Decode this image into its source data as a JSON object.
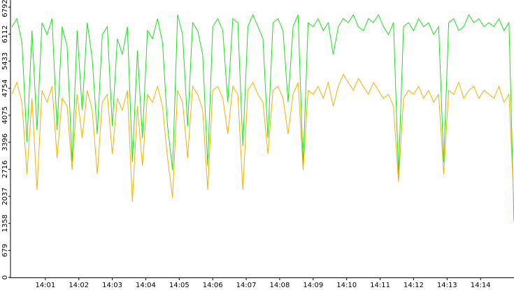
{
  "chart_data": {
    "type": "line",
    "x": [
      0,
      0.15,
      0.3,
      0.45,
      0.6,
      0.75,
      0.9,
      1.05,
      1.2,
      1.35,
      1.5,
      1.65,
      1.8,
      1.95,
      2.1,
      2.25,
      2.4,
      2.55,
      2.7,
      2.85,
      3,
      3.15,
      3.3,
      3.45,
      3.6,
      3.75,
      3.9,
      4.05,
      4.2,
      4.35,
      4.5,
      4.65,
      4.8,
      4.95,
      5.1,
      5.25,
      5.4,
      5.55,
      5.7,
      5.85,
      6,
      6.15,
      6.3,
      6.45,
      6.6,
      6.75,
      6.9,
      7.05,
      7.2,
      7.35,
      7.5,
      7.65,
      7.8,
      7.95,
      8.1,
      8.25,
      8.4,
      8.55,
      8.7,
      8.85,
      9,
      9.15,
      9.3,
      9.45,
      9.6,
      9.75,
      9.9,
      10.05,
      10.2,
      10.35,
      10.5,
      10.65,
      10.8,
      10.95,
      11.1,
      11.25,
      11.4,
      11.55,
      11.7,
      11.85,
      12,
      12.15,
      12.3,
      12.45,
      12.6,
      12.75,
      12.9,
      13.05,
      13.2,
      13.35,
      13.5,
      13.65,
      13.8,
      13.95,
      14.1,
      14.25,
      14.4,
      14.55,
      14.7,
      14.85,
      15
    ],
    "series": [
      {
        "color": "#1ee01e",
        "values": [
          6300,
          6500,
          5900,
          3400,
          6200,
          3700,
          6400,
          6100,
          6500,
          3700,
          6300,
          5800,
          2900,
          6200,
          4200,
          6400,
          5500,
          3600,
          6100,
          6300,
          3800,
          6000,
          5600,
          6300,
          2900,
          5700,
          3500,
          6200,
          6000,
          6500,
          5900,
          3800,
          2700,
          6600,
          6100,
          3800,
          6400,
          6200,
          5600,
          2800,
          6300,
          6500,
          6200,
          4400,
          6500,
          6400,
          3300,
          6300,
          6600,
          6300,
          6000,
          3500,
          6400,
          6500,
          6200,
          4400,
          6300,
          6600,
          2800,
          6400,
          6300,
          6500,
          6200,
          6400,
          5600,
          6300,
          6500,
          6400,
          6600,
          6300,
          6200,
          6500,
          6400,
          6600,
          6300,
          6100,
          6400,
          2600,
          6300,
          6400,
          6200,
          6500,
          6300,
          6400,
          6100,
          6300,
          2900,
          6400,
          6500,
          6200,
          6300,
          6600,
          6400,
          6500,
          6300,
          6400,
          6300,
          6500,
          6200,
          6400,
          1400
        ]
      },
      {
        "color": "#f0b400",
        "values": [
          4600,
          4900,
          4400,
          2600,
          4500,
          2200,
          4700,
          4400,
          4800,
          3000,
          4500,
          4300,
          2700,
          4600,
          3500,
          4700,
          4200,
          2600,
          4400,
          4600,
          3100,
          4500,
          4200,
          4700,
          1900,
          4300,
          2800,
          4600,
          4400,
          4800,
          4300,
          3000,
          2000,
          4700,
          4400,
          3000,
          4800,
          4600,
          4200,
          2200,
          4700,
          4800,
          4500,
          3600,
          4800,
          4600,
          2200,
          4700,
          4900,
          4600,
          4400,
          3100,
          4700,
          4800,
          4500,
          3600,
          4600,
          4900,
          2700,
          4700,
          4600,
          4800,
          4500,
          4900,
          4300,
          4800,
          5100,
          4900,
          4700,
          5000,
          4800,
          4600,
          4900,
          4700,
          4500,
          4600,
          4300,
          2400,
          4500,
          4700,
          4600,
          4800,
          4500,
          4700,
          4400,
          4600,
          2600,
          4700,
          4600,
          4900,
          4500,
          4700,
          4800,
          4500,
          4700,
          4600,
          4500,
          4800,
          4400,
          4600,
          1800
        ]
      }
    ],
    "xlim": [
      0,
      15
    ],
    "xticks": [
      {
        "value": 1,
        "label": "14:01"
      },
      {
        "value": 2,
        "label": "14:02"
      },
      {
        "value": 3,
        "label": "14:03"
      },
      {
        "value": 4,
        "label": "14:04"
      },
      {
        "value": 5,
        "label": "14:05"
      },
      {
        "value": 6,
        "label": "14:06"
      },
      {
        "value": 7,
        "label": "14:07"
      },
      {
        "value": 8,
        "label": "14:08"
      },
      {
        "value": 9,
        "label": "14:09"
      },
      {
        "value": 10,
        "label": "14:10"
      },
      {
        "value": 11,
        "label": "14:11"
      },
      {
        "value": 12,
        "label": "14:12"
      },
      {
        "value": 13,
        "label": "14:13"
      },
      {
        "value": 14,
        "label": "14:14"
      }
    ],
    "ylim": [
      0,
      6970
    ],
    "yticks": [
      0,
      679,
      1358,
      2037,
      2716,
      3396,
      4075,
      4754,
      5433,
      6112,
      6792
    ]
  }
}
